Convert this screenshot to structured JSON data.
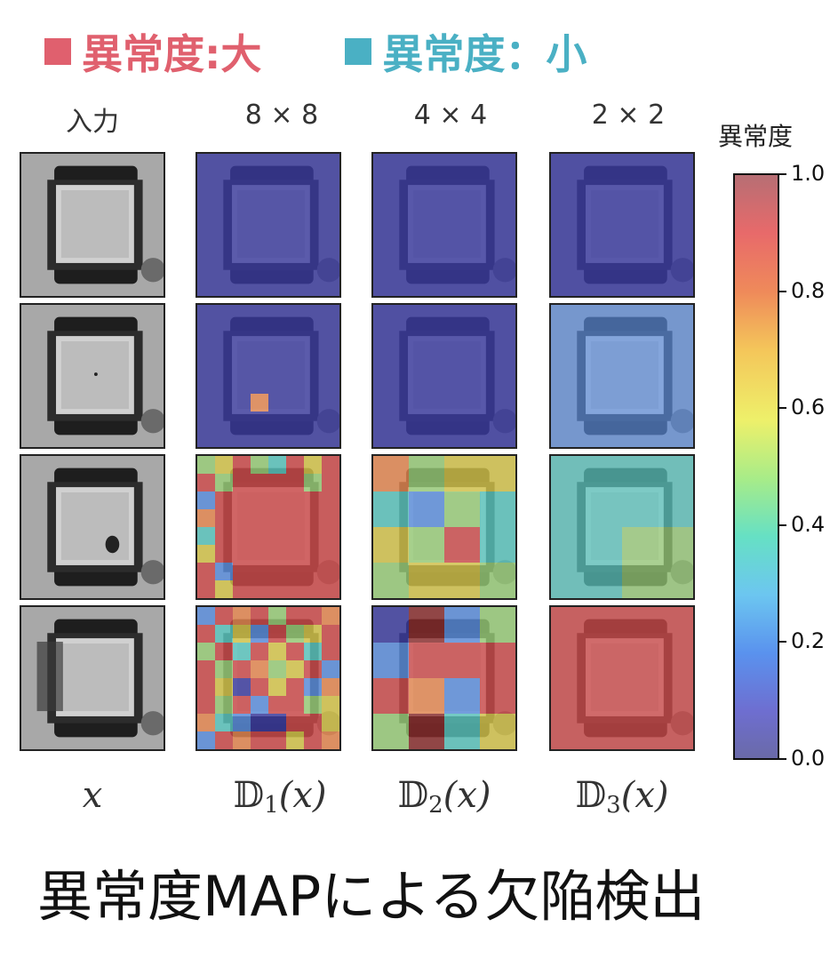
{
  "legend": {
    "large_label": "異常度:大",
    "small_label": "異常度：小",
    "large_color": "#e0606e",
    "small_color": "#4ab0c4"
  },
  "columns": {
    "input": "入力",
    "c1": "8 × 8",
    "c2": "4 × 4",
    "c3": "2 × 2"
  },
  "colorbar": {
    "title": "異常度",
    "ticks": [
      "1.0",
      "0.8",
      "0.6",
      "0.4",
      "0.2",
      "0.0"
    ],
    "range": [
      0.0,
      1.0
    ]
  },
  "bottom_labels": {
    "input": "x",
    "d1": {
      "symbol": "𝔻",
      "sub": "1",
      "arg": "(x)"
    },
    "d2": {
      "symbol": "𝔻",
      "sub": "2",
      "arg": "(x)"
    },
    "d3": {
      "symbol": "𝔻",
      "sub": "3",
      "arg": "(x)"
    }
  },
  "caption": "異常度MAPによる欠陥検出"
}
